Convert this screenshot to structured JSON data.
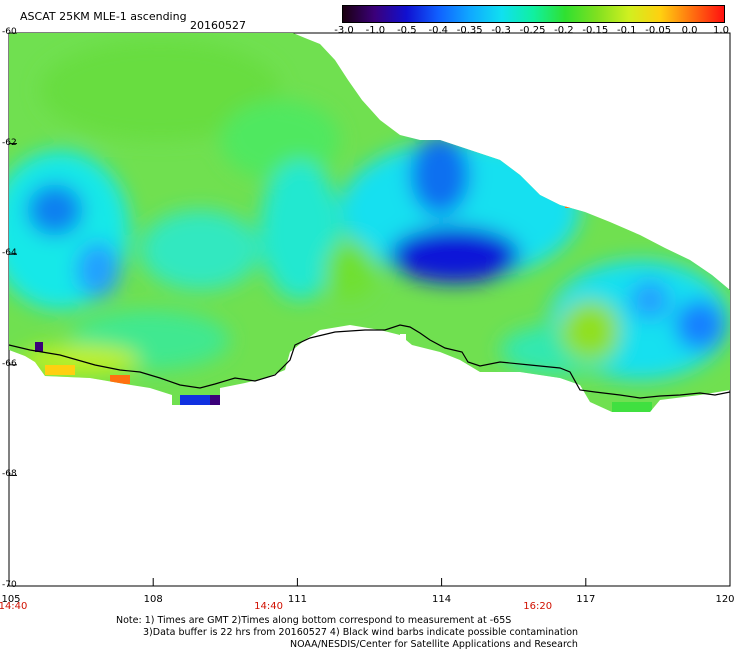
{
  "header": {
    "title": "ASCAT 25KM MLE-1 ascending",
    "date": "20160527"
  },
  "colorbar": {
    "labels": [
      "-3.0",
      "-1.0",
      "-0.5",
      "-0.4",
      "-0.35",
      "-0.3",
      "-0.25",
      "-0.2",
      "-0.15",
      "-0.1",
      "-0.05",
      "0.0",
      "1.0"
    ],
    "colors": [
      "#1a0010",
      "#3b007a",
      "#1010d0",
      "#1060ff",
      "#10a8ff",
      "#10e0f0",
      "#10f0a0",
      "#30e030",
      "#80e020",
      "#d0f020",
      "#ffd010",
      "#ff7010",
      "#ff1010"
    ]
  },
  "axes": {
    "lat_labels": [
      "-60",
      "-62",
      "-64",
      "-66",
      "-68",
      "-70"
    ],
    "lat_values": [
      -60,
      -62,
      -64,
      -66,
      -68,
      -70
    ],
    "lon_labels": [
      "105",
      "108",
      "111",
      "114",
      "117",
      "120"
    ],
    "lon_values": [
      105,
      108,
      111,
      114,
      117,
      120
    ],
    "time_labels": [
      "14:40",
      "14:40",
      "16:20"
    ],
    "time_lons": [
      105,
      110.4,
      116
    ]
  },
  "notes": {
    "line1": "Note: 1) Times are GMT 2)Times along bottom correspond to measurement at -65S",
    "line2": "3)Data buffer is 22 hrs from 20160527 4) Black wind barbs indicate possible contamination",
    "line3": "NOAA/NESDIS/Center for Satellite Applications and Research"
  }
}
